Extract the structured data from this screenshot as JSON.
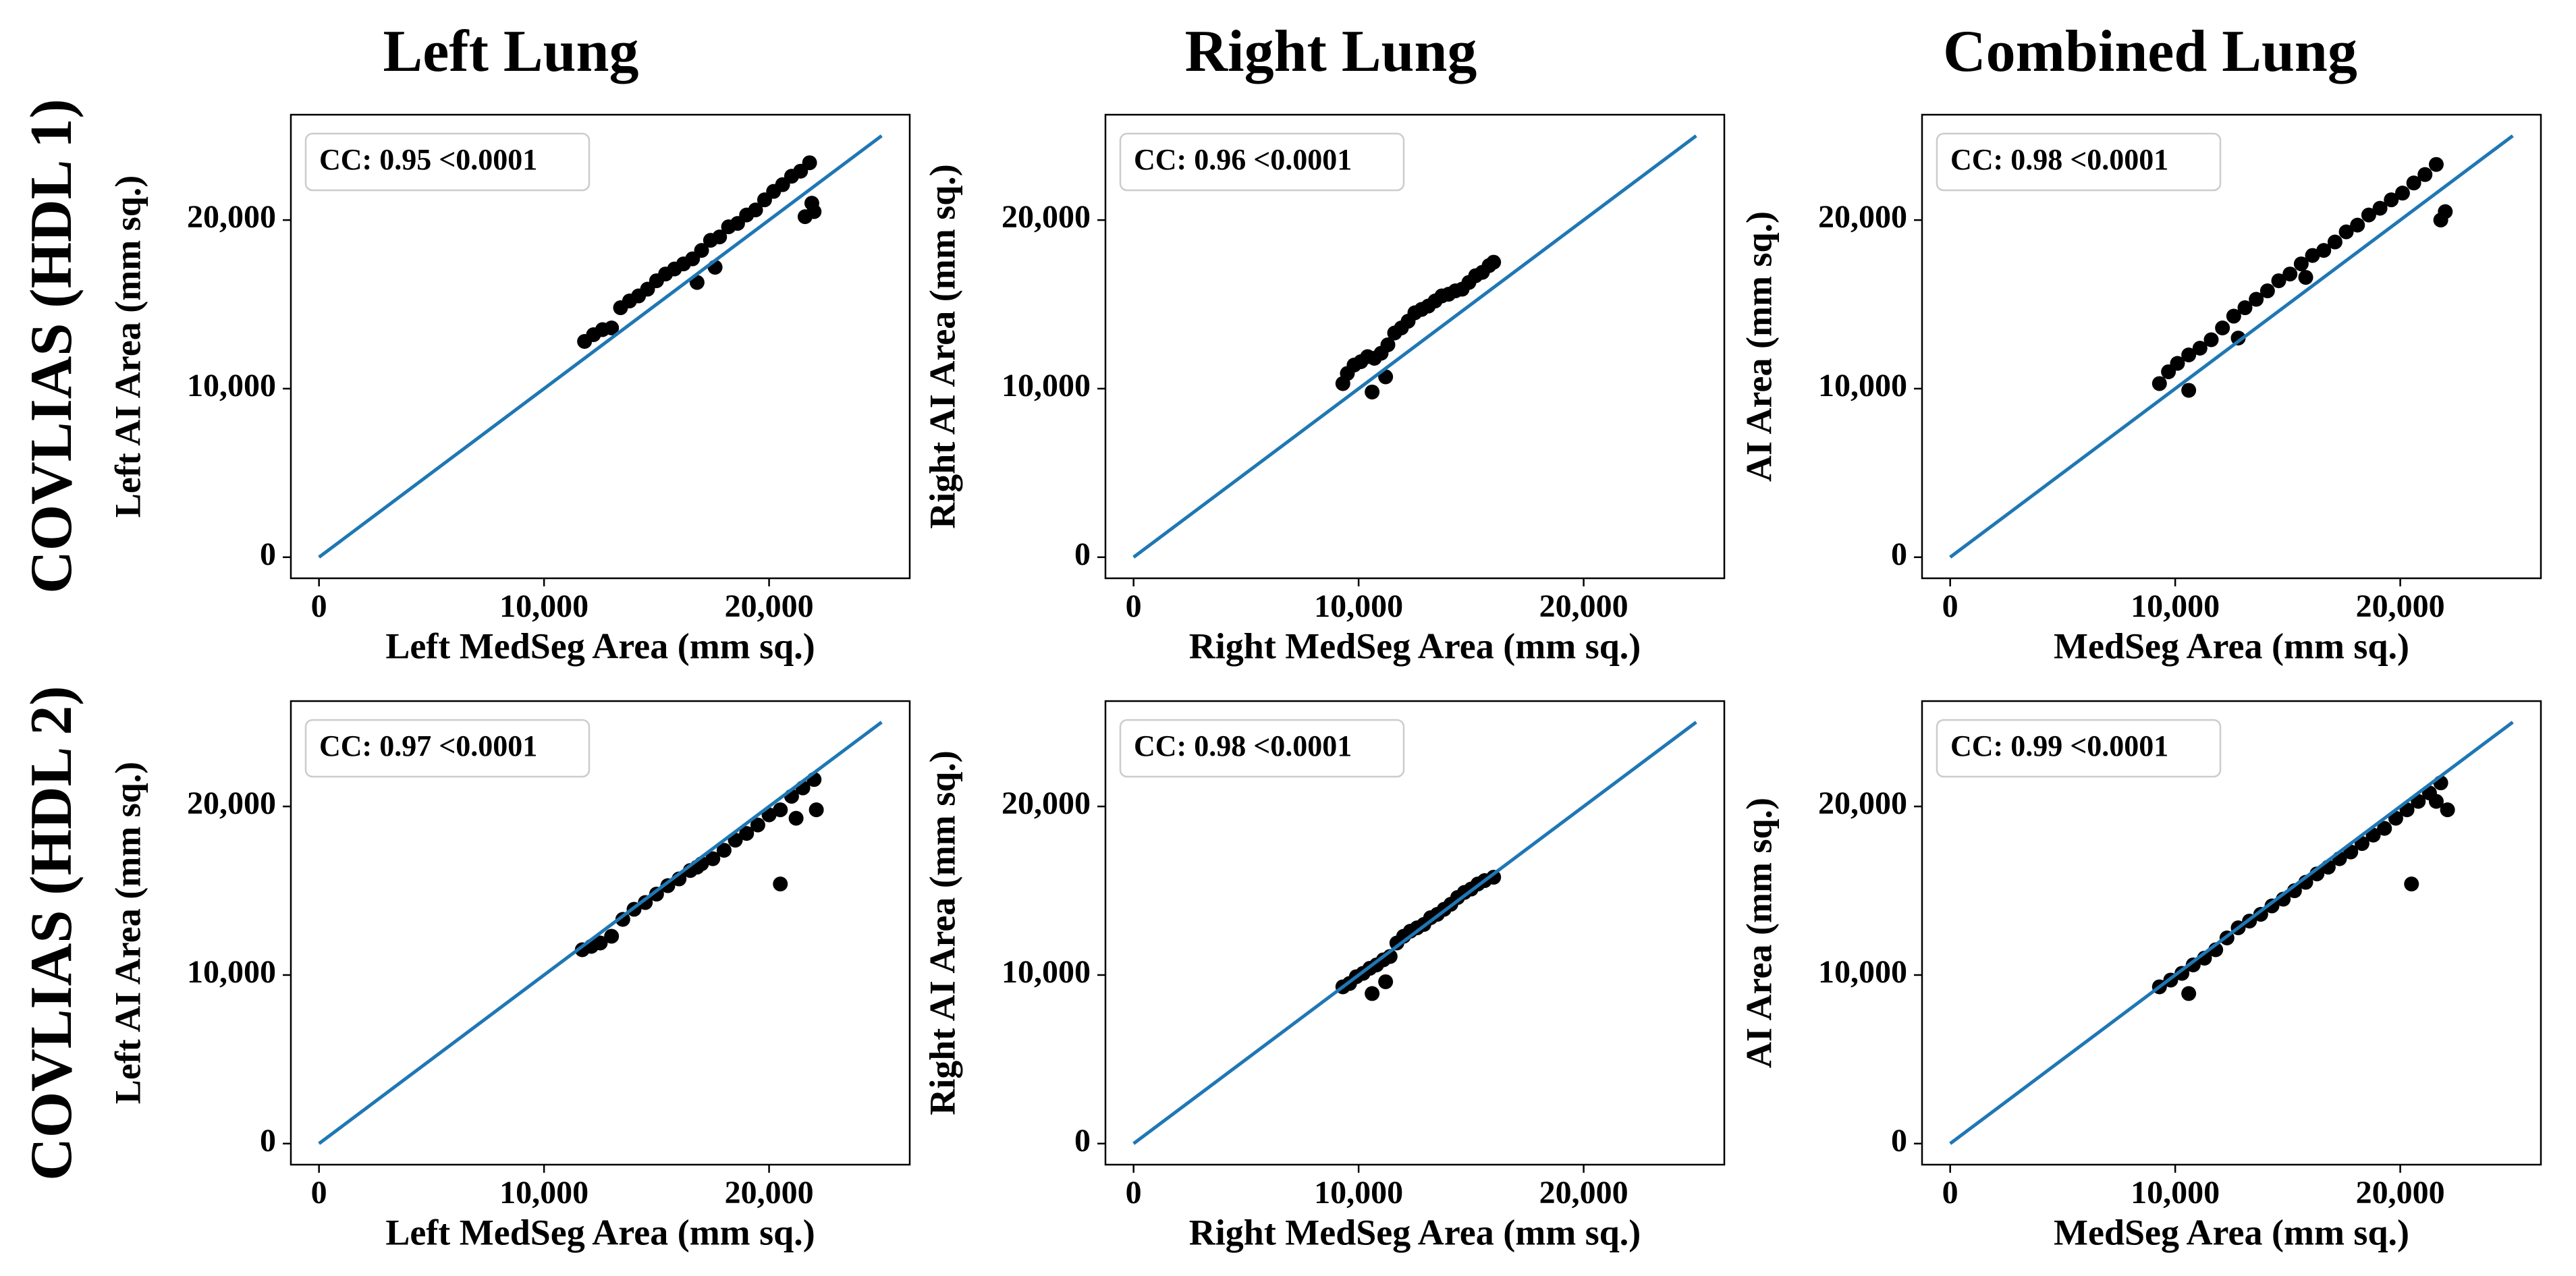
{
  "column_titles": [
    "Left Lung",
    "Right Lung",
    "Combined Lung"
  ],
  "row_titles": [
    "COVLIAS (HDL 1)",
    "COVLIAS (HDL 2)"
  ],
  "chart_data": [
    {
      "type": "scatter",
      "annotation": "CC: 0.95 <0.0001",
      "x_label": "Left MedSeg Area (mm sq.)",
      "y_label": "Left AI Area (mm sq.)",
      "color": "#000000",
      "x": [
        11800,
        12200,
        12600,
        13000,
        13400,
        13800,
        14200,
        14600,
        15000,
        15400,
        15800,
        16200,
        16600,
        17000,
        17400,
        17800,
        18200,
        18600,
        19000,
        19400,
        19800,
        20200,
        20600,
        21000,
        21400,
        21800,
        22000,
        21600,
        21900,
        16800,
        17600
      ],
      "y": [
        12800,
        13200,
        13500,
        13600,
        14800,
        15200,
        15500,
        15900,
        16400,
        16800,
        17100,
        17400,
        17700,
        18200,
        18800,
        19000,
        19600,
        19800,
        20300,
        20600,
        21200,
        21700,
        22100,
        22600,
        22900,
        23400,
        20500,
        20200,
        21000,
        16300,
        17200
      ],
      "line_x": [
        0,
        25000
      ],
      "line_y": [
        0,
        25000
      ],
      "line_color": "#1f77b4",
      "xlim": [
        -1250,
        26250
      ],
      "ylim": [
        -1250,
        26250
      ],
      "xticks": [
        0,
        {
          "value": 10000,
          "label": "10,000"
        },
        {
          "value": 20000,
          "label": "20,000"
        }
      ],
      "yticks": [
        0,
        {
          "value": 10000,
          "label": "10,000"
        },
        {
          "value": 20000,
          "label": "20,000"
        }
      ]
    },
    {
      "type": "scatter",
      "annotation": "CC: 0.96 <0.0001",
      "x_label": "Right MedSeg Area (mm sq.)",
      "y_label": "Right AI Area (mm sq.)",
      "color": "#000000",
      "x": [
        9300,
        9500,
        9800,
        10100,
        10400,
        10700,
        11000,
        11300,
        11600,
        11900,
        12200,
        12500,
        12800,
        13100,
        13400,
        13700,
        14000,
        14300,
        14600,
        14900,
        15200,
        15500,
        15800,
        16000,
        10600,
        11200
      ],
      "y": [
        10300,
        10900,
        11400,
        11600,
        11900,
        11800,
        12100,
        12600,
        13300,
        13600,
        14000,
        14500,
        14700,
        14900,
        15200,
        15500,
        15600,
        15800,
        15900,
        16300,
        16700,
        16900,
        17300,
        17500,
        9800,
        10700
      ],
      "line_x": [
        0,
        25000
      ],
      "line_y": [
        0,
        25000
      ],
      "line_color": "#1f77b4",
      "xlim": [
        -1250,
        26250
      ],
      "ylim": [
        -1250,
        26250
      ],
      "xticks": [
        0,
        {
          "value": 10000,
          "label": "10,000"
        },
        {
          "value": 20000,
          "label": "20,000"
        }
      ],
      "yticks": [
        0,
        {
          "value": 10000,
          "label": "10,000"
        },
        {
          "value": 20000,
          "label": "20,000"
        }
      ]
    },
    {
      "type": "scatter",
      "annotation": "CC: 0.98 <0.0001",
      "x_label": "MedSeg Area (mm sq.)",
      "y_label": "AI Area (mm sq.)",
      "color": "#000000",
      "x": [
        9300,
        9700,
        10100,
        10600,
        11100,
        11600,
        12100,
        12600,
        13100,
        13600,
        14100,
        14600,
        15100,
        15600,
        16100,
        16600,
        17100,
        17600,
        18100,
        18600,
        19100,
        19600,
        20100,
        20600,
        21100,
        21600,
        22000,
        21800,
        10600,
        12800,
        15800
      ],
      "y": [
        10300,
        11000,
        11500,
        12000,
        12400,
        12900,
        13600,
        14300,
        14800,
        15300,
        15800,
        16400,
        16800,
        17400,
        17900,
        18200,
        18700,
        19300,
        19700,
        20300,
        20700,
        21200,
        21600,
        22200,
        22700,
        23300,
        20500,
        20000,
        9900,
        13000,
        16600
      ],
      "line_x": [
        0,
        25000
      ],
      "line_y": [
        0,
        25000
      ],
      "line_color": "#1f77b4",
      "xlim": [
        -1250,
        26250
      ],
      "ylim": [
        -1250,
        26250
      ],
      "xticks": [
        0,
        {
          "value": 10000,
          "label": "10,000"
        },
        {
          "value": 20000,
          "label": "20,000"
        }
      ],
      "yticks": [
        0,
        {
          "value": 10000,
          "label": "10,000"
        },
        {
          "value": 20000,
          "label": "20,000"
        }
      ]
    },
    {
      "type": "scatter",
      "annotation": "CC: 0.97 <0.0001",
      "x_label": "Left MedSeg Area (mm sq.)",
      "y_label": "Left AI Area (mm sq.)",
      "color": "#000000",
      "x": [
        11700,
        12100,
        12500,
        13000,
        13500,
        14000,
        14500,
        15000,
        15500,
        16000,
        16500,
        17000,
        17500,
        18000,
        18500,
        19000,
        19500,
        20000,
        20500,
        21000,
        21500,
        22000,
        22100,
        21200,
        20500,
        16800
      ],
      "y": [
        11500,
        11700,
        11900,
        12300,
        13300,
        13900,
        14300,
        14800,
        15300,
        15700,
        16200,
        16600,
        16900,
        17400,
        18000,
        18400,
        18900,
        19500,
        19800,
        20600,
        21100,
        21600,
        19800,
        19300,
        15400,
        16400
      ],
      "line_x": [
        0,
        25000
      ],
      "line_y": [
        0,
        25000
      ],
      "line_color": "#1f77b4",
      "xlim": [
        -1250,
        26250
      ],
      "ylim": [
        -1250,
        26250
      ],
      "xticks": [
        0,
        {
          "value": 10000,
          "label": "10,000"
        },
        {
          "value": 20000,
          "label": "20,000"
        }
      ],
      "yticks": [
        0,
        {
          "value": 10000,
          "label": "10,000"
        },
        {
          "value": 20000,
          "label": "20,000"
        }
      ]
    },
    {
      "type": "scatter",
      "annotation": "CC: 0.98 <0.0001",
      "x_label": "Right MedSeg Area (mm sq.)",
      "y_label": "Right AI Area (mm sq.)",
      "color": "#000000",
      "x": [
        9300,
        9600,
        9900,
        10200,
        10500,
        10800,
        11100,
        11400,
        11700,
        12000,
        12300,
        12600,
        12900,
        13200,
        13500,
        13800,
        14100,
        14400,
        14700,
        15000,
        15300,
        15600,
        16000,
        10600,
        11200
      ],
      "y": [
        9300,
        9500,
        9900,
        10100,
        10400,
        10600,
        10900,
        11100,
        11900,
        12300,
        12600,
        12800,
        13000,
        13400,
        13600,
        13900,
        14200,
        14600,
        14900,
        15100,
        15400,
        15600,
        15800,
        8900,
        9600
      ],
      "line_x": [
        0,
        25000
      ],
      "line_y": [
        0,
        25000
      ],
      "line_color": "#1f77b4",
      "xlim": [
        -1250,
        26250
      ],
      "ylim": [
        -1250,
        26250
      ],
      "xticks": [
        0,
        {
          "value": 10000,
          "label": "10,000"
        },
        {
          "value": 20000,
          "label": "20,000"
        }
      ],
      "yticks": [
        0,
        {
          "value": 10000,
          "label": "10,000"
        },
        {
          "value": 20000,
          "label": "20,000"
        }
      ]
    },
    {
      "type": "scatter",
      "annotation": "CC: 0.99 <0.0001",
      "x_label": "MedSeg Area (mm sq.)",
      "y_label": "AI Area (mm sq.)",
      "color": "#000000",
      "x": [
        9300,
        9800,
        10300,
        10800,
        11300,
        11800,
        12300,
        12800,
        13300,
        13800,
        14300,
        14800,
        15300,
        15800,
        16300,
        16800,
        17300,
        17800,
        18300,
        18800,
        19300,
        19800,
        20300,
        20800,
        21300,
        21800,
        22100,
        20500,
        10600,
        21600
      ],
      "y": [
        9300,
        9700,
        10100,
        10600,
        11000,
        11500,
        12200,
        12800,
        13200,
        13600,
        14100,
        14500,
        15000,
        15500,
        16000,
        16400,
        16900,
        17300,
        17800,
        18300,
        18700,
        19300,
        19800,
        20300,
        20800,
        21400,
        19800,
        15400,
        8900,
        20300
      ],
      "line_x": [
        0,
        25000
      ],
      "line_y": [
        0,
        25000
      ],
      "line_color": "#1f77b4",
      "xlim": [
        -1250,
        26250
      ],
      "ylim": [
        -1250,
        26250
      ],
      "xticks": [
        0,
        {
          "value": 10000,
          "label": "10,000"
        },
        {
          "value": 20000,
          "label": "20,000"
        }
      ],
      "yticks": [
        0,
        {
          "value": 10000,
          "label": "10,000"
        },
        {
          "value": 20000,
          "label": "20,000"
        }
      ]
    }
  ]
}
